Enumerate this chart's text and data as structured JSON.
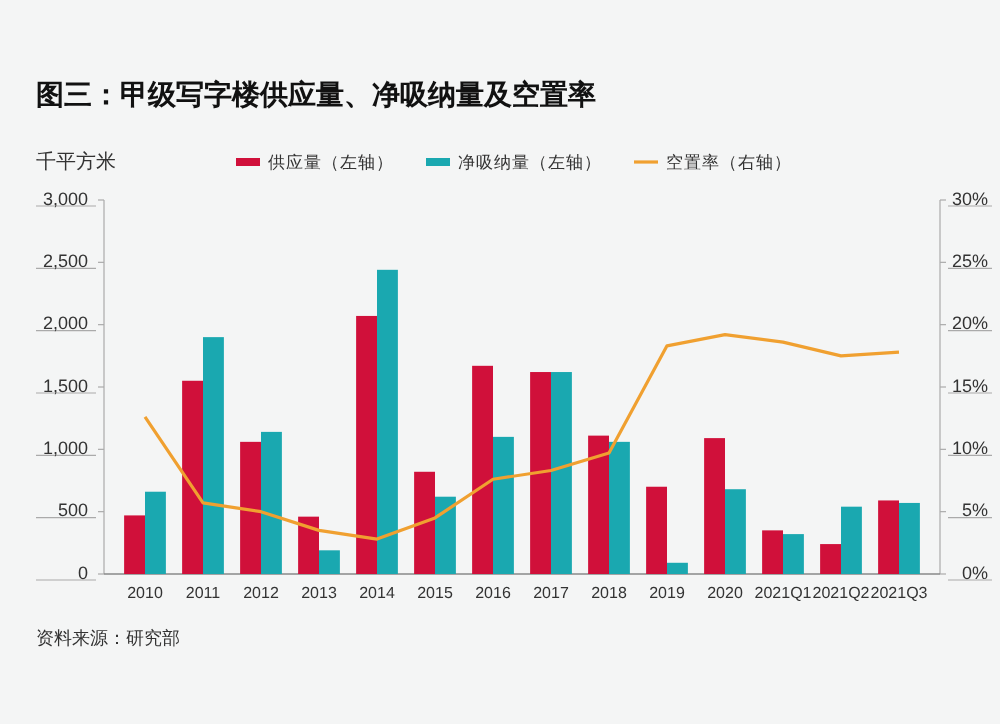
{
  "chart_data": {
    "type": "bar",
    "title": "图三：甲级写字楼供应量、净吸纳量及空置率",
    "ylabel": "千平方米",
    "categories": [
      "2010",
      "2011",
      "2012",
      "2013",
      "2014",
      "2015",
      "2016",
      "2017",
      "2018",
      "2019",
      "2020",
      "2021Q1",
      "2021Q2",
      "2021Q3"
    ],
    "series": [
      {
        "name": "供应量（左轴）",
        "color": "#d0103a",
        "values": [
          470,
          1550,
          1060,
          460,
          2070,
          820,
          1670,
          1620,
          1110,
          700,
          1090,
          350,
          240,
          590
        ]
      },
      {
        "name": "净吸纳量（左轴）",
        "color": "#1aa8b0",
        "values": [
          660,
          1900,
          1140,
          190,
          2440,
          620,
          1100,
          1620,
          1060,
          90,
          680,
          320,
          540,
          570
        ]
      },
      {
        "name": "空置率（右轴）",
        "type": "line",
        "axis": "y2",
        "color": "#f0a030",
        "values": [
          12.6,
          5.7,
          5.0,
          3.5,
          2.8,
          4.5,
          7.6,
          8.3,
          9.7,
          18.3,
          19.2,
          18.6,
          17.5,
          17.8
        ]
      }
    ],
    "ylim": [
      0,
      3000
    ],
    "yticks": [
      0,
      500,
      {
        "value": 1000,
        "label": "1,000"
      },
      {
        "value": 1500,
        "label": "1,500"
      },
      {
        "value": 2000,
        "label": "2,000"
      },
      {
        "value": 2500,
        "label": "2,500"
      },
      {
        "value": 3000,
        "label": "3,000"
      }
    ],
    "y2lim": [
      0,
      30
    ],
    "y2ticks": [
      {
        "value": 0,
        "label": "0%"
      },
      {
        "value": 5,
        "label": "5%"
      },
      {
        "value": 10,
        "label": "10%"
      },
      {
        "value": 15,
        "label": "15%"
      },
      {
        "value": 20,
        "label": "20%"
      },
      {
        "value": 25,
        "label": "25%"
      },
      {
        "value": 30,
        "label": "30%"
      }
    ],
    "legend": "top",
    "grid": false,
    "annotations": [
      "资料来源：研究部"
    ]
  }
}
